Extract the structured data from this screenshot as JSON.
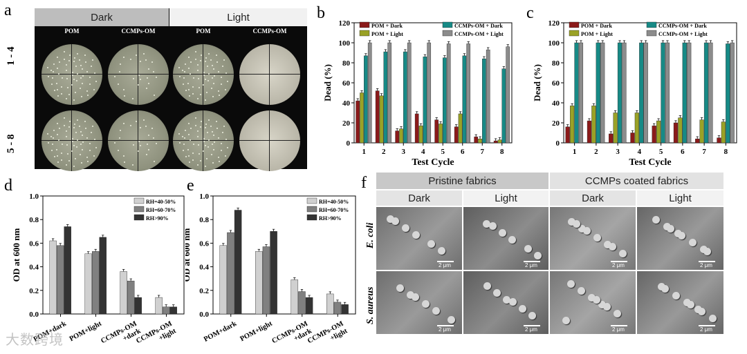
{
  "panel_a": {
    "letter": "a",
    "header_dark": "Dark",
    "header_light": "Light",
    "col_labels": [
      "POM",
      "CCMPs-OM",
      "POM",
      "CCMPs-OM"
    ],
    "row_labels": [
      "1 - 4",
      "5 - 8"
    ]
  },
  "panel_f": {
    "letter": "f",
    "header_pristine": "Pristine fabrics",
    "header_coated": "CCMPs coated fabrics",
    "sub_headers": [
      "Dark",
      "Light",
      "Dark",
      "Light"
    ],
    "row_labels": [
      "E. coli",
      "S. aureus"
    ],
    "scale_label": "2 μm"
  },
  "watermark": "大数跨境",
  "chart_data": [
    {
      "id": "b",
      "letter": "b",
      "type": "bar",
      "xlabel": "Test Cycle",
      "ylabel": "Dead (%)",
      "ylim": [
        0,
        120
      ],
      "yticks": [
        0,
        20,
        40,
        60,
        80,
        100,
        120
      ],
      "categories": [
        "1",
        "2",
        "3",
        "4",
        "5",
        "6",
        "7",
        "8"
      ],
      "series": [
        {
          "name": "POM + Dark",
          "color": "#8b1a1a",
          "values": [
            42,
            52,
            12,
            29,
            23,
            16,
            6,
            2
          ]
        },
        {
          "name": "POM + Light",
          "color": "#9aa226",
          "values": [
            50,
            47,
            14,
            17,
            19,
            29,
            4,
            3
          ]
        },
        {
          "name": "CCMPs-OM  + Dark",
          "color": "#178a86",
          "values": [
            87,
            91,
            91,
            86,
            85,
            87,
            84,
            74
          ]
        },
        {
          "name": "CCMPs-OM  + Light",
          "color": "#8c8c8c",
          "values": [
            100,
            100,
            100,
            100,
            99,
            99,
            93,
            96
          ]
        }
      ]
    },
    {
      "id": "c",
      "letter": "c",
      "type": "bar",
      "xlabel": "Test Cycle",
      "ylabel": "Dead (%)",
      "ylim": [
        0,
        120
      ],
      "yticks": [
        0,
        20,
        40,
        60,
        80,
        100,
        120
      ],
      "categories": [
        "1",
        "2",
        "3",
        "4",
        "5",
        "6",
        "7",
        "8"
      ],
      "series": [
        {
          "name": "POM + Dark",
          "color": "#8b1a1a",
          "values": [
            16,
            22,
            9,
            10,
            17,
            20,
            4,
            5
          ]
        },
        {
          "name": "POM + Light",
          "color": "#9aa226",
          "values": [
            37,
            37,
            30,
            30,
            22,
            25,
            23,
            21
          ]
        },
        {
          "name": "CCMPs-OM + Dark",
          "color": "#178a86",
          "values": [
            100,
            100,
            100,
            100,
            100,
            100,
            100,
            99
          ]
        },
        {
          "name": "CCMPs-OM + Light",
          "color": "#8c8c8c",
          "values": [
            100,
            100,
            100,
            100,
            100,
            100,
            100,
            100
          ]
        }
      ]
    },
    {
      "id": "d",
      "letter": "d",
      "type": "bar",
      "xlabel": "",
      "ylabel": "OD at 600 nm",
      "ylim": [
        0,
        1.0
      ],
      "yticks": [
        0.0,
        0.2,
        0.4,
        0.6,
        0.8,
        1.0
      ],
      "categories": [
        "POM+dark",
        "POM+light",
        "CCMPs-OM +dark",
        "CCMPs-OM +light"
      ],
      "series": [
        {
          "name": "RH=40-50%",
          "color": "#d0d0d0",
          "values": [
            0.62,
            0.51,
            0.36,
            0.14
          ]
        },
        {
          "name": "RH=60-70%",
          "color": "#808080",
          "values": [
            0.58,
            0.53,
            0.28,
            0.06
          ]
        },
        {
          "name": "RH>90%",
          "color": "#333333",
          "values": [
            0.74,
            0.65,
            0.14,
            0.06
          ]
        }
      ]
    },
    {
      "id": "e",
      "letter": "e",
      "type": "bar",
      "xlabel": "",
      "ylabel": "OD at 600 nm",
      "ylim": [
        0,
        1.0
      ],
      "yticks": [
        0.0,
        0.2,
        0.4,
        0.6,
        0.8,
        1.0
      ],
      "categories": [
        "POM+dark",
        "POM+light",
        "CCMPs-OM +dark",
        "CCMPs-OM +light"
      ],
      "series": [
        {
          "name": "RH=40-50%",
          "color": "#d0d0d0",
          "values": [
            0.58,
            0.53,
            0.29,
            0.17
          ]
        },
        {
          "name": "RH=60-70%",
          "color": "#808080",
          "values": [
            0.69,
            0.57,
            0.19,
            0.1
          ]
        },
        {
          "name": "RH>90%",
          "color": "#333333",
          "values": [
            0.88,
            0.7,
            0.14,
            0.08
          ]
        }
      ]
    }
  ]
}
